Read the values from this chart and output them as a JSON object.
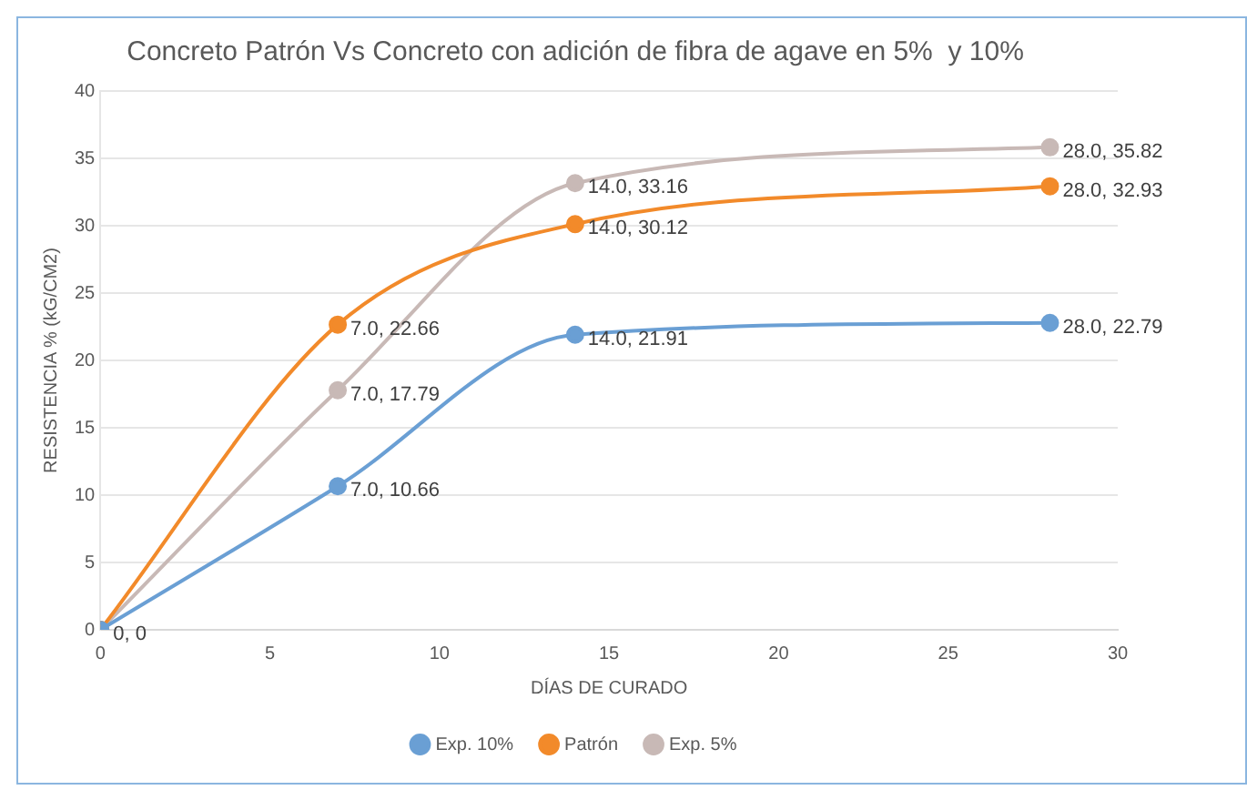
{
  "chart_data": {
    "type": "line",
    "title": "Concreto Patrón Vs Concreto con adición de fibra de agave en 5%  y 10%",
    "xlabel": "DÍAS DE CURADO",
    "ylabel": "RESISTENCIA % (kG/CM2)",
    "x": [
      0,
      7,
      14,
      28
    ],
    "series": [
      {
        "name": "Exp. 10%",
        "color": "#6a9fd4",
        "values": [
          0,
          10.66,
          21.91,
          22.79
        ],
        "value_labels": [
          null,
          "7.0, 10.66",
          "14.0, 21.91",
          "28.0, 22.79"
        ]
      },
      {
        "name": "Patrón",
        "color": "#f28a2a",
        "values": [
          0,
          22.66,
          30.12,
          32.93
        ],
        "value_labels": [
          null,
          "7.0, 22.66",
          "14.0, 30.12",
          "28.0, 32.93"
        ]
      },
      {
        "name": "Exp. 5%",
        "color": "#c8b9b6",
        "values": [
          0,
          17.79,
          33.16,
          35.82
        ],
        "value_labels": [
          "0, 0",
          "7.0, 17.79",
          "14.0, 33.16",
          "28.0, 35.82"
        ]
      }
    ],
    "xlim": [
      0,
      30
    ],
    "xticks": [
      0,
      5,
      10,
      15,
      20,
      25,
      30
    ],
    "ylim": [
      0,
      40
    ],
    "yticks": [
      0,
      5,
      10,
      15,
      20,
      25,
      30,
      35,
      40
    ],
    "grid": "y",
    "legend": "bottom",
    "marker": "circle",
    "line_style": "solid"
  }
}
